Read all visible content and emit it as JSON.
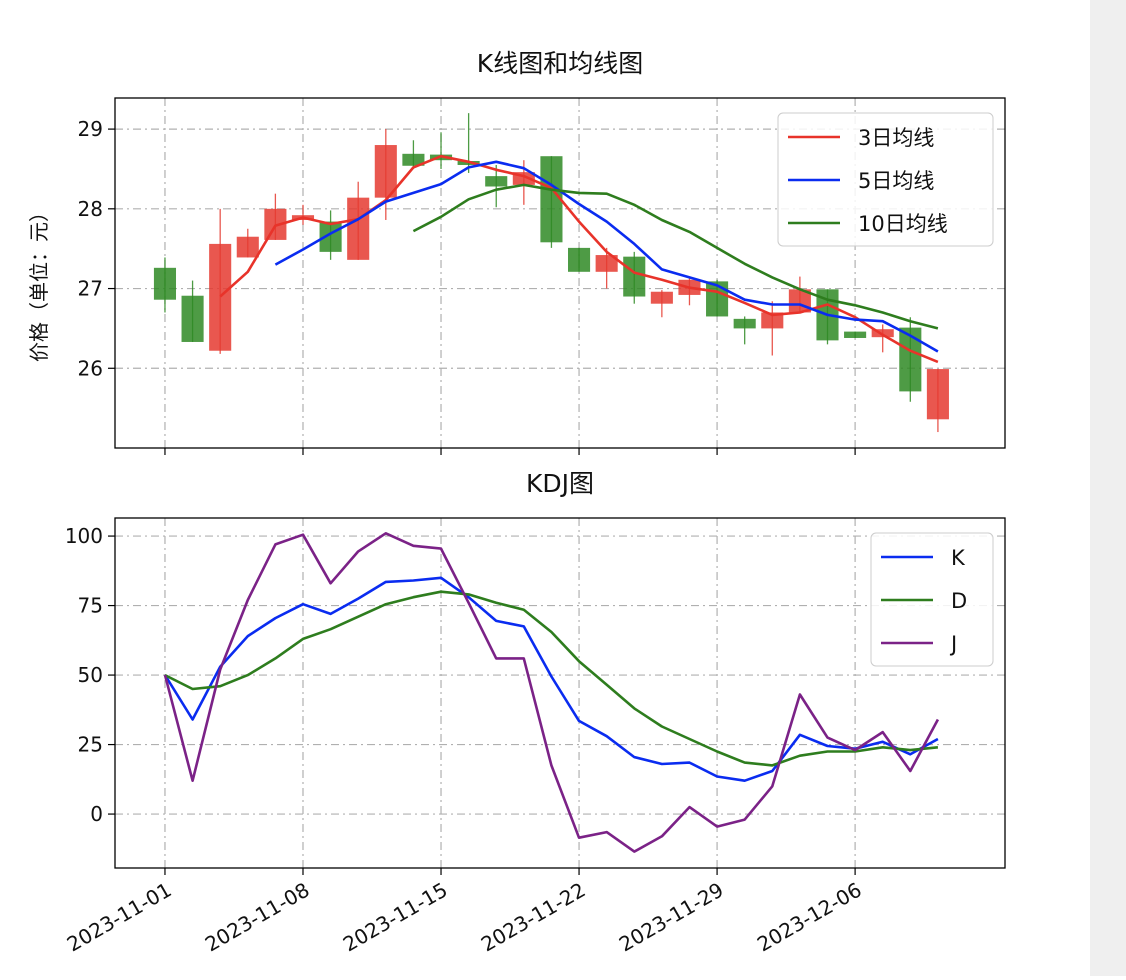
{
  "chart_data": [
    {
      "type": "candlestick",
      "title": "K线图和均线图",
      "ylabel": "价格（单位：元）",
      "categories": [
        null,
        null,
        null,
        null,
        null,
        null,
        null,
        null,
        null,
        null,
        null,
        null,
        null,
        null,
        null,
        null,
        null,
        null,
        null,
        null,
        null,
        null,
        null,
        null,
        null,
        null,
        null,
        null,
        null
      ],
      "open": [
        27.26,
        26.91,
        26.22,
        27.39,
        27.61,
        27.86,
        27.84,
        27.36,
        28.14,
        28.69,
        28.68,
        28.6,
        28.41,
        28.3,
        28.66,
        27.51,
        27.21,
        27.4,
        26.81,
        26.92,
        27.09,
        26.62,
        26.5,
        26.7,
        26.99,
        26.46,
        26.39,
        26.51,
        25.36
      ],
      "high": [
        27.39,
        27.1,
        28.0,
        27.75,
        28.19,
        28.05,
        27.98,
        28.34,
        29.0,
        28.86,
        28.96,
        29.2,
        28.55,
        28.61,
        28.66,
        27.51,
        27.51,
        27.46,
        26.98,
        27.15,
        27.11,
        26.65,
        26.84,
        27.15,
        26.99,
        26.46,
        26.55,
        26.64,
        25.99
      ],
      "low": [
        26.7,
        26.33,
        26.18,
        27.39,
        27.61,
        27.8,
        27.36,
        27.36,
        27.86,
        28.5,
        28.5,
        28.45,
        28.02,
        28.05,
        27.51,
        27.21,
        27.0,
        26.81,
        26.64,
        26.79,
        26.65,
        26.3,
        26.16,
        26.7,
        26.3,
        26.38,
        26.2,
        25.58,
        25.2
      ],
      "close": [
        26.86,
        26.33,
        27.56,
        27.65,
        28.0,
        27.92,
        27.46,
        28.14,
        28.8,
        28.54,
        28.61,
        28.55,
        28.28,
        28.46,
        27.58,
        27.21,
        27.42,
        26.9,
        26.96,
        27.11,
        26.65,
        26.5,
        26.7,
        26.99,
        26.35,
        26.38,
        26.49,
        25.71,
        25.99
      ],
      "up_color": "#e53a30",
      "down_color": "#2f8a24",
      "series": [
        {
          "name": "3日均线",
          "color": "#e8332a",
          "values": [
            null,
            null,
            26.9,
            27.21,
            27.79,
            27.89,
            27.81,
            27.87,
            28.11,
            28.52,
            28.66,
            28.59,
            28.49,
            28.41,
            28.26,
            27.84,
            27.46,
            27.2,
            27.11,
            27.01,
            26.96,
            26.82,
            26.67,
            26.7,
            26.8,
            26.64,
            26.42,
            26.22,
            26.08
          ]
        },
        {
          "name": "5日均线",
          "color": "#0a2cf0",
          "values": [
            null,
            null,
            null,
            null,
            27.3,
            27.49,
            27.69,
            27.87,
            28.09,
            28.2,
            28.31,
            28.52,
            28.59,
            28.51,
            28.3,
            28.06,
            27.84,
            27.56,
            27.24,
            27.14,
            27.04,
            26.86,
            26.8,
            26.8,
            26.67,
            26.61,
            26.59,
            26.41,
            26.21
          ]
        },
        {
          "name": "10日均线",
          "color": "#2e7d1e",
          "values": [
            null,
            null,
            null,
            null,
            null,
            null,
            null,
            null,
            null,
            27.72,
            27.9,
            28.12,
            28.24,
            28.3,
            28.24,
            28.2,
            28.19,
            28.05,
            27.86,
            27.71,
            27.51,
            27.31,
            27.14,
            26.99,
            26.86,
            26.79,
            26.7,
            26.59,
            26.5
          ]
        }
      ],
      "xlim": [
        -1.81,
        30.43
      ],
      "ylim": [
        25.0,
        29.39
      ],
      "yticks": [
        26,
        27,
        28,
        29
      ],
      "grid": true,
      "legend": "upper right"
    },
    {
      "type": "line",
      "title": "KDJ图",
      "categories": [
        null,
        null,
        null,
        null,
        null,
        null,
        null,
        null,
        null,
        null,
        null,
        null,
        null,
        null,
        null,
        null,
        null,
        null,
        null,
        null,
        null,
        null,
        null,
        null,
        null,
        null,
        null,
        null,
        null
      ],
      "series": [
        {
          "name": "K",
          "color": "#0a2cf0",
          "values": [
            50,
            34,
            53,
            64,
            70.5,
            75.5,
            72,
            77.5,
            83.5,
            84,
            85,
            78,
            69.5,
            67.5,
            49.5,
            33.5,
            28,
            20.5,
            18,
            18.5,
            13.5,
            12,
            15.5,
            28.5,
            24.5,
            23.5,
            26,
            21.5,
            27
          ]
        },
        {
          "name": "D",
          "color": "#2e7d1e",
          "values": [
            50,
            45,
            46,
            50,
            56,
            63,
            66.5,
            71,
            75.5,
            78,
            80,
            79,
            76,
            73.5,
            65.5,
            55,
            46.5,
            38,
            31.5,
            27,
            22.5,
            18.5,
            17.5,
            21,
            22.5,
            22.5,
            24,
            23,
            24
          ]
        },
        {
          "name": "J",
          "color": "#7b2287",
          "values": [
            50,
            12,
            52,
            77,
            97,
            100.5,
            83,
            94.5,
            101,
            96.5,
            95.5,
            76,
            56,
            56,
            17.5,
            -8.5,
            -6.5,
            -13.5,
            -8,
            2.5,
            -4.5,
            -2,
            10,
            43,
            27.5,
            23,
            29.5,
            15.5,
            34
          ]
        }
      ],
      "xlim": [
        -1.81,
        30.43
      ],
      "xticks": [
        {
          "value": 0,
          "label": "2023-11-01"
        },
        {
          "value": 5,
          "label": "2023-11-08"
        },
        {
          "value": 10,
          "label": "2023-11-15"
        },
        {
          "value": 15,
          "label": "2023-11-22"
        },
        {
          "value": 20,
          "label": "2023-11-29"
        },
        {
          "value": 25,
          "label": "2023-12-06"
        }
      ],
      "ylim": [
        -19.4,
        106.5
      ],
      "yticks": [
        0,
        25,
        50,
        75,
        100
      ],
      "grid": true,
      "legend": "upper right"
    }
  ]
}
